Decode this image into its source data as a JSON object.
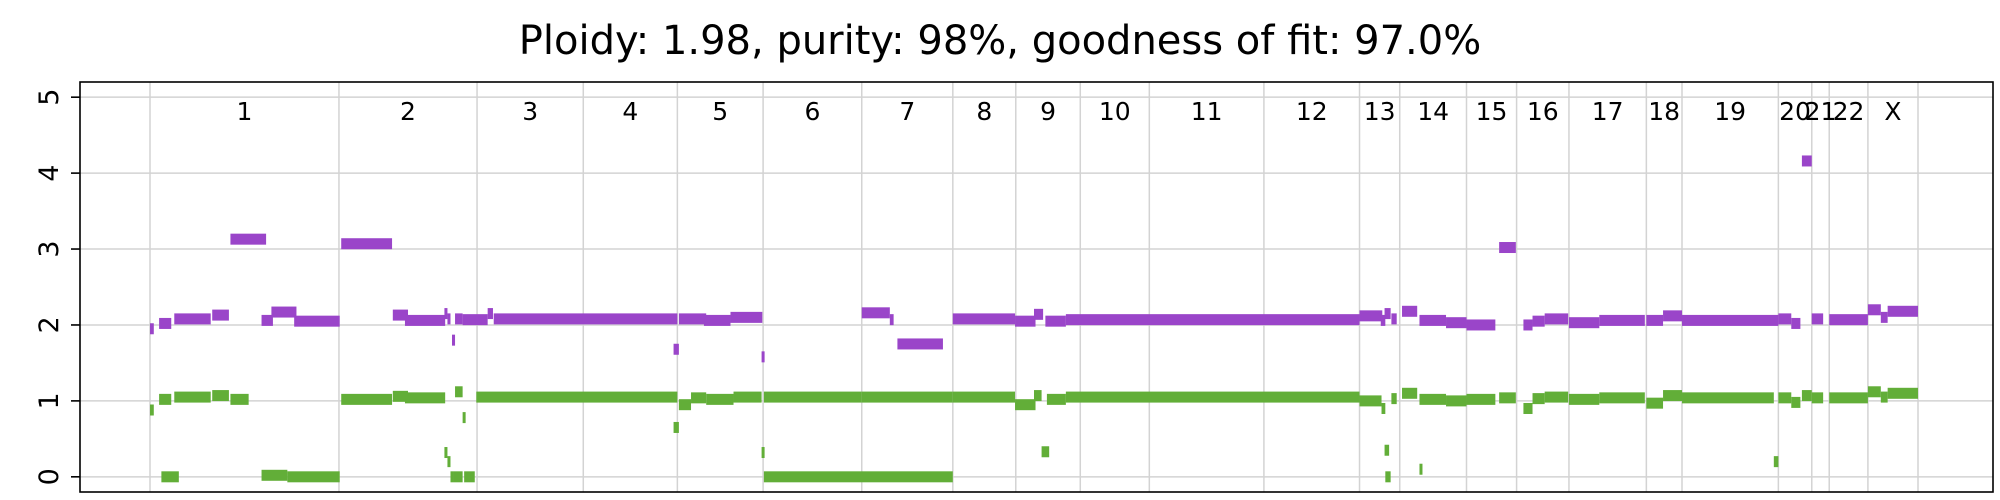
{
  "chart_data": {
    "type": "scatter",
    "title": "Ploidy: 1.98, purity: 98%, goodness of fit: 97.0%",
    "xlabel": "",
    "ylabel": "",
    "ylim": [
      -0.2,
      5.2
    ],
    "yticks": [
      0,
      1,
      2,
      3,
      4,
      5
    ],
    "grid": true,
    "legend": "none",
    "colors": {
      "total_copy_number": "#9a45c9",
      "minor_copy_number": "#62ae38",
      "grid": "#d3d3d3"
    },
    "chromosomes": [
      {
        "label": "1",
        "start": 0,
        "end": 249
      },
      {
        "label": "2",
        "start": 249,
        "end": 431
      },
      {
        "label": "3",
        "start": 431,
        "end": 571
      },
      {
        "label": "4",
        "start": 571,
        "end": 695
      },
      {
        "label": "5",
        "start": 695,
        "end": 808
      },
      {
        "label": "6",
        "start": 808,
        "end": 938
      },
      {
        "label": "7",
        "start": 938,
        "end": 1058
      },
      {
        "label": "8",
        "start": 1058,
        "end": 1141
      },
      {
        "label": "9",
        "start": 1141,
        "end": 1226
      },
      {
        "label": "10",
        "start": 1226,
        "end": 1317
      },
      {
        "label": "11",
        "start": 1317,
        "end": 1468
      },
      {
        "label": "12",
        "start": 1468,
        "end": 1594
      },
      {
        "label": "13",
        "start": 1594,
        "end": 1647
      },
      {
        "label": "14",
        "start": 1647,
        "end": 1735
      },
      {
        "label": "15",
        "start": 1735,
        "end": 1801
      },
      {
        "label": "16",
        "start": 1801,
        "end": 1870
      },
      {
        "label": "17",
        "start": 1870,
        "end": 1972
      },
      {
        "label": "18",
        "start": 1972,
        "end": 2019
      },
      {
        "label": "19",
        "start": 2019,
        "end": 2146
      },
      {
        "label": "20",
        "start": 2146,
        "end": 2190
      },
      {
        "label": "21",
        "start": 2190,
        "end": 2213
      },
      {
        "label": "22",
        "start": 2213,
        "end": 2264
      },
      {
        "label": "X",
        "start": 2264,
        "end": 2330
      }
    ],
    "series": [
      {
        "name": "",
        "color": "#9a45c9",
        "segments": [
          [
            0,
            5,
            1.95
          ],
          [
            12,
            28,
            2.02
          ],
          [
            32,
            80,
            2.08
          ],
          [
            82,
            104,
            2.13
          ],
          [
            106,
            153,
            3.13
          ],
          [
            147,
            162,
            2.06
          ],
          [
            160,
            193,
            2.17
          ],
          [
            190,
            250,
            2.05
          ],
          [
            252,
            319,
            3.07
          ],
          [
            320,
            340,
            2.13
          ],
          [
            336,
            389,
            2.06
          ],
          [
            388,
            392,
            2.15
          ],
          [
            392,
            396,
            2.08
          ],
          [
            398,
            402,
            1.8
          ],
          [
            402,
            412,
            2.08
          ],
          [
            412,
            445,
            2.07
          ],
          [
            445,
            452,
            2.15
          ],
          [
            453,
            695,
            2.08
          ],
          [
            690,
            697,
            1.68
          ],
          [
            697,
            733,
            2.08
          ],
          [
            730,
            765,
            2.06
          ],
          [
            765,
            807,
            2.1
          ],
          [
            806,
            809,
            1.58
          ],
          [
            938,
            975,
            2.16
          ],
          [
            975,
            980,
            2.07
          ],
          [
            985,
            1045,
            1.75
          ],
          [
            1058,
            1140,
            2.08
          ],
          [
            1140,
            1167,
            2.05
          ],
          [
            1165,
            1177,
            2.14
          ],
          [
            1180,
            1207,
            2.05
          ],
          [
            1207,
            1594,
            2.07
          ],
          [
            1594,
            1624,
            2.12
          ],
          [
            1622,
            1628,
            2.06
          ],
          [
            1627,
            1635,
            2.15
          ],
          [
            1636,
            1643,
            2.08
          ],
          [
            1650,
            1670,
            2.18
          ],
          [
            1673,
            1708,
            2.06
          ],
          [
            1708,
            1735,
            2.03
          ],
          [
            1735,
            1773,
            2.0
          ],
          [
            1778,
            1800,
            3.02
          ],
          [
            1810,
            1822,
            2.0
          ],
          [
            1822,
            1838,
            2.05
          ],
          [
            1838,
            1869,
            2.08
          ],
          [
            1870,
            1910,
            2.03
          ],
          [
            1910,
            1970,
            2.06
          ],
          [
            1972,
            1994,
            2.06
          ],
          [
            1994,
            2019,
            2.12
          ],
          [
            2019,
            2146,
            2.06
          ],
          [
            2146,
            2163,
            2.08
          ],
          [
            2163,
            2175,
            2.02
          ],
          [
            2177,
            2190,
            4.16
          ],
          [
            2190,
            2205,
            2.08
          ],
          [
            2213,
            2264,
            2.07
          ],
          [
            2264,
            2281,
            2.2
          ],
          [
            2281,
            2290,
            2.1
          ],
          [
            2290,
            2330,
            2.18
          ]
        ]
      },
      {
        "name": "",
        "color": "#62ae38",
        "segments": [
          [
            0,
            5,
            0.88
          ],
          [
            12,
            28,
            1.02
          ],
          [
            15,
            38,
            0.0
          ],
          [
            32,
            80,
            1.05
          ],
          [
            82,
            104,
            1.07
          ],
          [
            106,
            130,
            1.02
          ],
          [
            147,
            181,
            0.02
          ],
          [
            181,
            250,
            0.0
          ],
          [
            252,
            319,
            1.02
          ],
          [
            320,
            340,
            1.06
          ],
          [
            336,
            389,
            1.04
          ],
          [
            388,
            392,
            0.32
          ],
          [
            392,
            396,
            0.2
          ],
          [
            396,
            400,
            0.0
          ],
          [
            400,
            412,
            0.0
          ],
          [
            402,
            412,
            1.12
          ],
          [
            412,
            414,
            0.78
          ],
          [
            414,
            428,
            0.0
          ],
          [
            430,
            695,
            1.05
          ],
          [
            690,
            697,
            0.65
          ],
          [
            697,
            713,
            0.95
          ],
          [
            713,
            733,
            1.04
          ],
          [
            733,
            769,
            1.02
          ],
          [
            769,
            806,
            1.05
          ],
          [
            806,
            809,
            0.32
          ],
          [
            809,
            938,
            1.05
          ],
          [
            809,
            1058,
            0.0
          ],
          [
            938,
            1058,
            1.05
          ],
          [
            1058,
            1140,
            1.05
          ],
          [
            1140,
            1167,
            0.95
          ],
          [
            1165,
            1175,
            1.07
          ],
          [
            1175,
            1185,
            0.33
          ],
          [
            1182,
            1207,
            1.02
          ],
          [
            1207,
            1594,
            1.05
          ],
          [
            1594,
            1623,
            1.0
          ],
          [
            1623,
            1628,
            0.9
          ],
          [
            1627,
            1633,
            0.35
          ],
          [
            1628,
            1635,
            0.0
          ],
          [
            1636,
            1643,
            1.03
          ],
          [
            1650,
            1670,
            1.1
          ],
          [
            1673,
            1675,
            0.1
          ],
          [
            1673,
            1708,
            1.02
          ],
          [
            1708,
            1735,
            1.0
          ],
          [
            1735,
            1773,
            1.02
          ],
          [
            1778,
            1800,
            1.04
          ],
          [
            1810,
            1822,
            0.9
          ],
          [
            1822,
            1838,
            1.03
          ],
          [
            1838,
            1869,
            1.05
          ],
          [
            1870,
            1910,
            1.02
          ],
          [
            1910,
            1970,
            1.04
          ],
          [
            1972,
            1994,
            0.97
          ],
          [
            1994,
            2019,
            1.07
          ],
          [
            2019,
            2140,
            1.04
          ],
          [
            2140,
            2146,
            0.2
          ],
          [
            2146,
            2163,
            1.04
          ],
          [
            2163,
            2175,
            0.98
          ],
          [
            2177,
            2190,
            1.07
          ],
          [
            2190,
            2205,
            1.04
          ],
          [
            2213,
            2264,
            1.04
          ],
          [
            2264,
            2281,
            1.12
          ],
          [
            2281,
            2290,
            1.05
          ],
          [
            2290,
            2330,
            1.1
          ]
        ]
      }
    ]
  }
}
